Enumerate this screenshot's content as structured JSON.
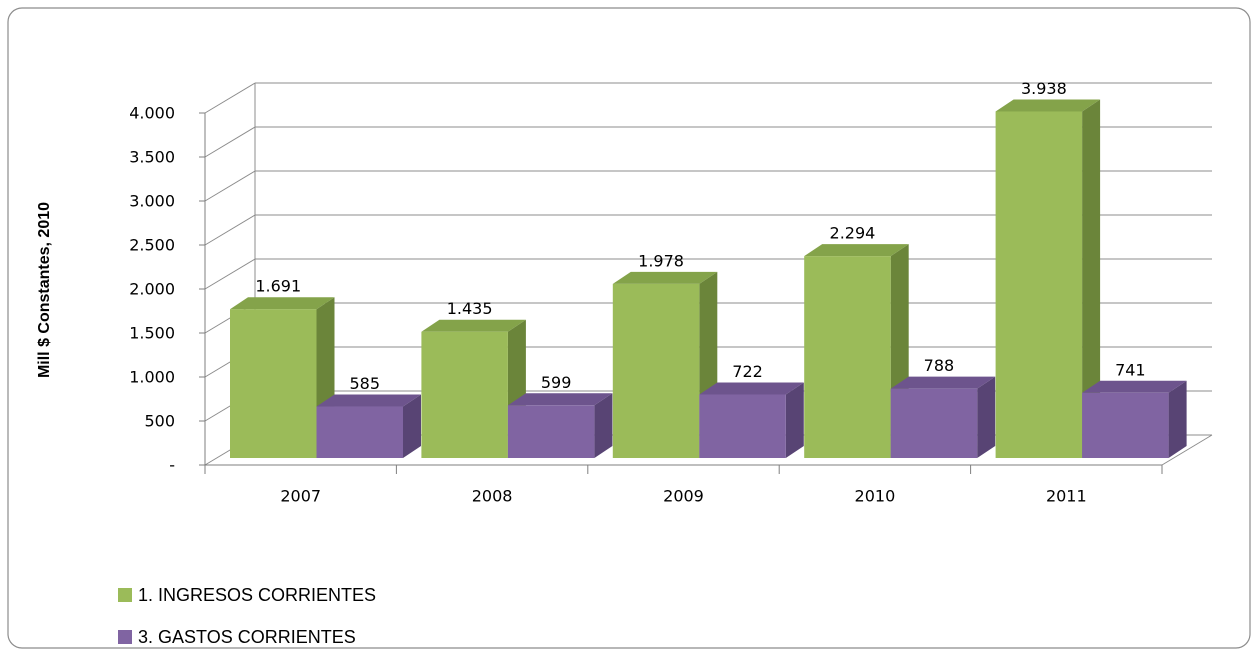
{
  "chart_data": {
    "type": "bar3d",
    "y_axis_label": "Mill $ Constantes, 2010",
    "categories": [
      "2007",
      "2008",
      "2009",
      "2010",
      "2011"
    ],
    "series": [
      {
        "name": "1.  INGRESOS CORRIENTES",
        "color": "#9bbb59",
        "side_color": "#6b853a",
        "top_color": "#84a34a",
        "values": [
          1691,
          1435,
          1978,
          2294,
          3938
        ],
        "value_labels": [
          "1.691",
          "1.435",
          "1.978",
          "2.294",
          "3.938"
        ]
      },
      {
        "name": "3.  GASTOS CORRIENTES",
        "color": "#8064a2",
        "side_color": "#584474",
        "top_color": "#6d548d",
        "values": [
          585,
          599,
          722,
          788,
          741
        ]
      }
    ],
    "ylim": [
      0,
      4000
    ],
    "yticks": [
      {
        "value": 0,
        "label": "-"
      },
      500,
      {
        "value": 1000,
        "label": "1.000"
      },
      {
        "value": 1500,
        "label": "1.500"
      },
      {
        "value": 2000,
        "label": "2.000"
      },
      {
        "value": 2500,
        "label": "2.500"
      },
      {
        "value": 3000,
        "label": "3.000"
      },
      {
        "value": 3500,
        "label": "3.500"
      },
      {
        "value": 4000,
        "label": "4.000"
      }
    ],
    "grid": true,
    "legend": "bottom-left"
  }
}
